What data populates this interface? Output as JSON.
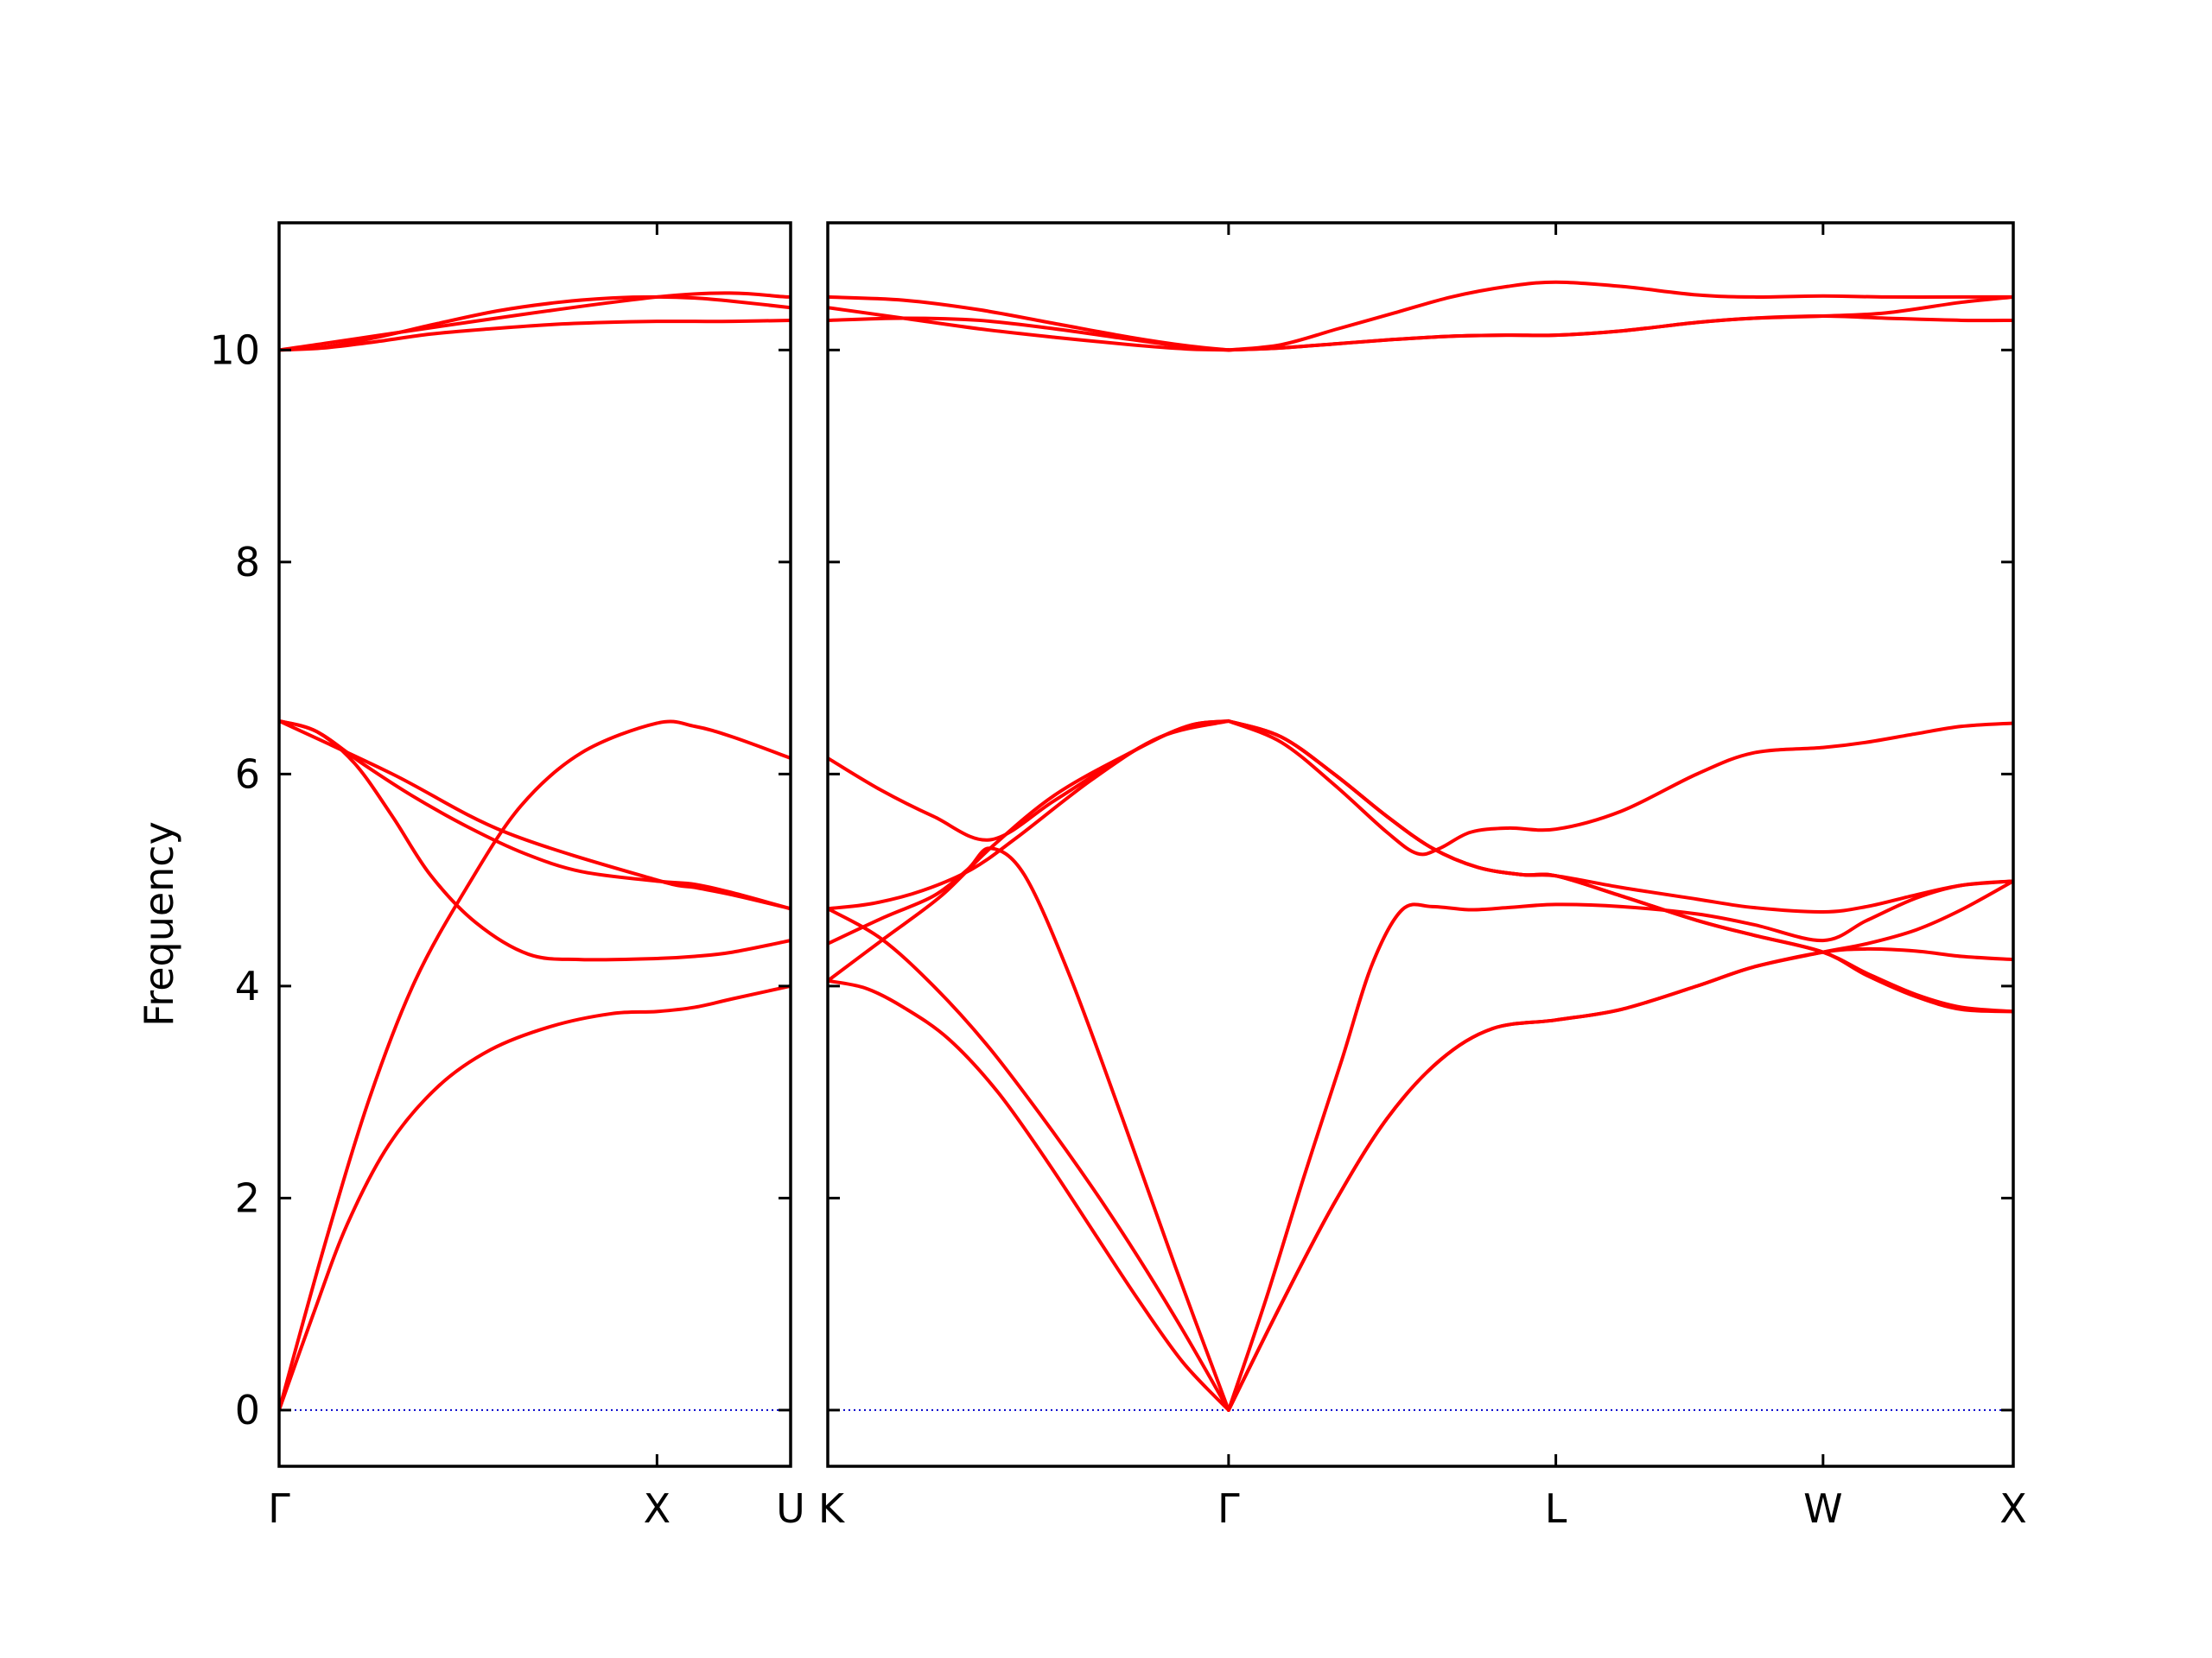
{
  "chart_data": {
    "type": "line",
    "title": "",
    "ylabel": "Frequency",
    "xlabel": "",
    "ylim": [
      -0.53,
      11.2
    ],
    "y_ticks": [
      0,
      2,
      4,
      6,
      8,
      10
    ],
    "grid": false,
    "line_color": "#ff0000",
    "zero_line_color": "#0000cc",
    "panels": [
      {
        "x_range": [
          0,
          1.3536
        ],
        "ticks": [
          {
            "x": 0,
            "label": "Γ"
          },
          {
            "x": 1.0,
            "label": "X"
          },
          {
            "x": 1.3536,
            "label": "U"
          }
        ],
        "branches": [
          {
            "x": [
              0,
              0.09,
              0.18,
              0.29,
              0.42,
              0.56,
              0.72,
              0.88,
              1.0,
              1.1,
              1.2,
              1.3536
            ],
            "y": [
              0,
              0.9,
              1.75,
              2.5,
              3.05,
              3.4,
              3.62,
              3.74,
              3.76,
              3.8,
              3.88,
              4.0
            ]
          },
          {
            "x": [
              0,
              0.12,
              0.24,
              0.36,
              0.5,
              0.64,
              0.8,
              1.0,
              1.1,
              1.2,
              1.3536
            ],
            "y": [
              0,
              1.55,
              2.95,
              4.05,
              4.95,
              5.7,
              6.2,
              6.48,
              6.45,
              6.35,
              6.15
            ]
          },
          {
            "x": [
              0,
              0.1,
              0.2,
              0.3,
              0.4,
              0.52,
              0.66,
              0.8,
              1.0,
              1.1,
              1.2,
              1.3536
            ],
            "y": [
              6.5,
              6.4,
              6.1,
              5.6,
              5.05,
              4.6,
              4.3,
              4.25,
              4.26,
              4.28,
              4.32,
              4.43
            ]
          },
          {
            "x": [
              0,
              0.1,
              0.22,
              0.35,
              0.5,
              0.65,
              0.8,
              1.0,
              1.1,
              1.2,
              1.3536
            ],
            "y": [
              6.5,
              6.4,
              6.1,
              5.8,
              5.5,
              5.25,
              5.08,
              4.99,
              4.96,
              4.88,
              4.73
            ]
          },
          {
            "x": [
              0,
              0.3,
              0.6,
              1.0,
              1.1,
              1.2,
              1.3536
            ],
            "y": [
              6.5,
              6.0,
              5.45,
              5.0,
              4.93,
              4.86,
              4.73
            ]
          },
          {
            "x": [
              0,
              0.12,
              0.26,
              0.4,
              0.56,
              0.72,
              0.86,
              1.0,
              1.1,
              1.2,
              1.3536
            ],
            "y": [
              10.0,
              10.02,
              10.08,
              10.15,
              10.2,
              10.24,
              10.26,
              10.27,
              10.27,
              10.27,
              10.28
            ]
          },
          {
            "x": [
              0,
              0.12,
              0.26,
              0.42,
              0.58,
              0.74,
              0.88,
              1.0,
              1.1,
              1.2,
              1.3536
            ],
            "y": [
              10.0,
              10.03,
              10.12,
              10.25,
              10.37,
              10.45,
              10.49,
              10.5,
              10.49,
              10.46,
              10.4
            ]
          },
          {
            "x": [
              0,
              1.0,
              1.3536
            ],
            "y": [
              10.0,
              10.5,
              10.5
            ]
          }
        ]
      },
      {
        "x_range": [
          0,
          3.1372
        ],
        "ticks": [
          {
            "x": 0,
            "label": "K"
          },
          {
            "x": 1.0607,
            "label": "Γ"
          },
          {
            "x": 1.9267,
            "label": "L"
          },
          {
            "x": 2.6338,
            "label": "W"
          },
          {
            "x": 3.1372,
            "label": "X"
          }
        ],
        "branches": [
          {
            "x": [
              0,
              0.1,
              0.2,
              0.32,
              0.45,
              0.58,
              0.7,
              0.82,
              0.94,
              1.0607
            ],
            "y": [
              4.05,
              3.98,
              3.8,
              3.5,
              3.0,
              2.35,
              1.7,
              1.05,
              0.45,
              0
            ]
          },
          {
            "x": [
              0,
              0.14,
              0.28,
              0.42,
              0.56,
              0.7,
              0.82,
              0.94,
              1.0607
            ],
            "y": [
              4.73,
              4.45,
              4.0,
              3.45,
              2.8,
              2.1,
              1.45,
              0.75,
              0
            ]
          },
          {
            "x": [
              0,
              0.15,
              0.28,
              0.37,
              0.43,
              0.52,
              0.64,
              0.78,
              0.92,
              1.0607
            ],
            "y": [
              4.4,
              4.65,
              4.85,
              5.1,
              5.3,
              5.05,
              4.1,
              2.75,
              1.35,
              0
            ]
          },
          {
            "x": [
              0,
              0.15,
              0.3,
              0.43,
              0.6,
              0.8,
              0.95,
              1.0607
            ],
            "y": [
              4.05,
              4.45,
              4.85,
              5.3,
              5.8,
              6.2,
              6.45,
              6.5
            ]
          },
          {
            "x": [
              0,
              0.12,
              0.25,
              0.38,
              0.5,
              0.7,
              0.88,
              1.0607
            ],
            "y": [
              4.73,
              4.78,
              4.9,
              5.1,
              5.4,
              5.95,
              6.35,
              6.5
            ]
          },
          {
            "x": [
              0,
              0.14,
              0.28,
              0.43,
              0.6,
              0.8,
              0.95,
              1.0607
            ],
            "y": [
              6.15,
              5.85,
              5.6,
              5.38,
              5.75,
              6.2,
              6.45,
              6.5
            ]
          },
          {
            "x": [
              1.0607,
              1.16,
              1.26,
              1.36,
              1.44,
              1.52,
              1.6,
              1.7,
              1.8,
              1.9267,
              2.1,
              2.3,
              2.45,
              2.6338,
              2.75,
              2.88,
              3.0,
              3.1372
            ],
            "y": [
              0,
              1.05,
              2.2,
              3.3,
              4.2,
              4.72,
              4.75,
              4.72,
              4.74,
              4.77,
              4.75,
              4.68,
              4.58,
              4.43,
              4.62,
              4.83,
              4.95,
              4.99
            ]
          },
          {
            "x": [
              1.0607,
              1.2,
              1.34,
              1.48,
              1.62,
              1.76,
              1.9267,
              2.1,
              2.3,
              2.45,
              2.6338,
              2.75,
              2.88,
              3.0,
              3.1372
            ],
            "y": [
              0,
              1.0,
              1.95,
              2.75,
              3.3,
              3.6,
              3.68,
              3.78,
              4.0,
              4.18,
              4.32,
              4.4,
              4.53,
              4.72,
              4.99
            ]
          },
          {
            "x": [
              1.0607,
              1.2,
              1.34,
              1.48,
              1.62,
              1.76,
              1.9267,
              2.1,
              2.3,
              2.45,
              2.6338,
              2.75,
              2.88,
              3.0,
              3.1372
            ],
            "y": [
              0,
              1.0,
              1.95,
              2.75,
              3.3,
              3.6,
              3.68,
              3.78,
              4.0,
              4.18,
              4.32,
              4.35,
              4.33,
              4.28,
              4.25
            ]
          },
          {
            "x": [
              1.0607,
              1.2,
              1.34,
              1.48,
              1.56,
              1.62,
              1.7,
              1.8,
              1.9267,
              2.1,
              2.3,
              2.45,
              2.6338,
              2.75,
              2.88,
              3.0,
              3.1372
            ],
            "y": [
              6.5,
              6.3,
              5.9,
              5.45,
              5.25,
              5.3,
              5.45,
              5.49,
              5.48,
              5.65,
              6.0,
              6.2,
              6.25,
              6.3,
              6.38,
              6.45,
              6.48
            ]
          },
          {
            "x": [
              1.0607,
              1.2,
              1.34,
              1.48,
              1.6,
              1.72,
              1.84,
              1.9267,
              2.1,
              2.3,
              2.45,
              2.6338,
              2.75,
              2.88,
              3.0,
              3.1372
            ],
            "y": [
              6.5,
              6.35,
              6.0,
              5.6,
              5.3,
              5.12,
              5.05,
              5.04,
              4.93,
              4.82,
              4.74,
              4.7,
              4.75,
              4.86,
              4.95,
              4.99
            ]
          },
          {
            "x": [
              1.0607,
              1.2,
              1.34,
              1.48,
              1.6,
              1.72,
              1.84,
              1.9267,
              2.1,
              2.3,
              2.45,
              2.6338,
              2.75,
              2.88,
              3.0,
              3.1372
            ],
            "y": [
              6.5,
              6.35,
              6.0,
              5.6,
              5.3,
              5.12,
              5.05,
              5.04,
              4.85,
              4.62,
              4.48,
              4.32,
              4.12,
              3.92,
              3.8,
              3.76
            ]
          },
          {
            "x": [
              1.0607,
              1.2,
              1.34,
              1.48,
              1.6,
              1.72,
              1.84,
              1.9267,
              2.1,
              2.3,
              2.45,
              2.6338,
              2.75,
              2.88,
              3.0,
              3.1372
            ],
            "y": [
              6.5,
              6.35,
              6.0,
              5.6,
              5.3,
              5.12,
              5.05,
              5.04,
              4.85,
              4.62,
              4.48,
              4.32,
              4.1,
              3.9,
              3.78,
              3.76
            ]
          },
          {
            "x": [
              0,
              0.2,
              0.4,
              0.6,
              0.8,
              0.95,
              1.0607
            ],
            "y": [
              10.28,
              10.3,
              10.28,
              10.2,
              10.1,
              10.03,
              10.0
            ]
          },
          {
            "x": [
              0,
              0.2,
              0.4,
              0.6,
              0.8,
              0.95,
              1.0607
            ],
            "y": [
              10.5,
              10.47,
              10.38,
              10.25,
              10.12,
              10.04,
              10.0
            ]
          },
          {
            "x": [
              0,
              0.2,
              0.4,
              0.6,
              0.8,
              0.95,
              1.0607
            ],
            "y": [
              10.4,
              10.3,
              10.2,
              10.12,
              10.05,
              10.01,
              10.0
            ]
          },
          {
            "x": [
              1.0607,
              1.2,
              1.35,
              1.5,
              1.65,
              1.8,
              1.9267,
              2.1,
              2.3,
              2.45,
              2.6338,
              2.8,
              3.0,
              3.1372
            ],
            "y": [
              10.0,
              10.02,
              10.06,
              10.1,
              10.13,
              10.14,
              10.14,
              10.18,
              10.26,
              10.3,
              10.32,
              10.35,
              10.45,
              10.5
            ]
          },
          {
            "x": [
              1.0607,
              1.2,
              1.35,
              1.5,
              1.65,
              1.8,
              1.9267,
              2.1,
              2.3,
              2.45,
              2.6338,
              2.8,
              3.0,
              3.1372
            ],
            "y": [
              10.0,
              10.05,
              10.2,
              10.35,
              10.5,
              10.6,
              10.64,
              10.6,
              10.52,
              10.5,
              10.51,
              10.5,
              10.5,
              10.5
            ]
          },
          {
            "x": [
              1.0607,
              1.2,
              1.35,
              1.5,
              1.65,
              1.8,
              1.9267,
              2.1,
              2.3,
              2.45,
              2.6338,
              2.8,
              3.0,
              3.1372
            ],
            "y": [
              10.0,
              10.02,
              10.06,
              10.1,
              10.13,
              10.14,
              10.14,
              10.18,
              10.26,
              10.3,
              10.32,
              10.3,
              10.28,
              10.28
            ]
          }
        ]
      }
    ]
  }
}
